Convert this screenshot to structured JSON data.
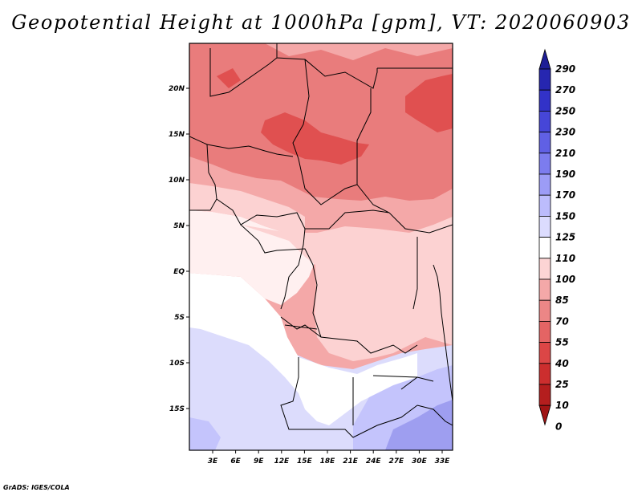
{
  "title": "Geopotential Height at 1000hPa [gpm], VT: 2020060903",
  "credit": "GrADS: IGES/COLA",
  "map": {
    "lon_range": [
      0,
      35
    ],
    "lat_range": [
      -20,
      25
    ],
    "lat_labels": [
      "20N",
      "15N",
      "10N",
      "5N",
      "EQ",
      "5S",
      "10S",
      "15S"
    ],
    "lon_labels": [
      "3E",
      "6E",
      "9E",
      "12E",
      "15E",
      "18E",
      "21E",
      "24E",
      "27E",
      "30E",
      "33E"
    ],
    "field_colors": {
      "deep_red": "#e05050",
      "red": "#e97c7c",
      "light_red": "#f4a8a8",
      "pink": "#fcd2d2",
      "very_light": "#fff0f0",
      "white": "#ffffff",
      "light_blue": "#dcdcfc",
      "blue": "#c4c4fc",
      "mid_blue": "#9e9ef0"
    }
  },
  "colorbar": {
    "labels": [
      "290",
      "270",
      "250",
      "230",
      "210",
      "190",
      "170",
      "150",
      "125",
      "110",
      "100",
      "85",
      "70",
      "55",
      "40",
      "25",
      "10",
      "0"
    ],
    "colors": [
      "#1e1e96",
      "#2626b0",
      "#3232c8",
      "#4646d8",
      "#6060e4",
      "#7c7cee",
      "#9c9cf6",
      "#bcbcfc",
      "#dcdcfe",
      "#ffffff",
      "#fcd4d4",
      "#f4a8a8",
      "#ec8686",
      "#e46464",
      "#dc4646",
      "#cc2e2e",
      "#b41e1e",
      "#a01414"
    ]
  }
}
